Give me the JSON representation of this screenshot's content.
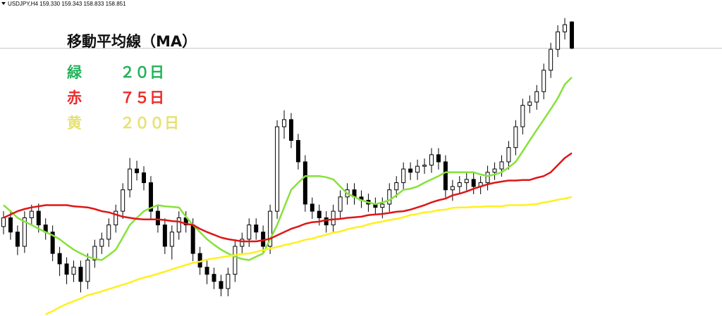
{
  "header": "USDJPY,H4  159.330 159.343 158.833 158.851",
  "chart_data": {
    "type": "candlestick",
    "title": "移動平均線（MA）",
    "ylim": [
      153.97,
      159.73
    ],
    "up_color": "#ffffff",
    "down_color": "#000000",
    "price_line": true,
    "open": [
      155.6,
      155.76,
      155.5,
      155.24,
      155.76,
      155.88,
      155.63,
      155.5,
      155.11,
      154.92,
      154.73,
      154.86,
      154.6,
      154.99,
      155.24,
      155.37,
      155.63,
      155.88,
      156.27,
      156.65,
      156.58,
      156.4,
      155.88,
      155.63,
      155.24,
      155.5,
      155.76,
      155.63,
      155.11,
      154.86,
      154.73,
      154.6,
      154.47,
      154.73,
      155.24,
      155.37,
      155.63,
      155.5,
      155.24,
      155.88,
      157.42,
      157.55,
      157.17,
      156.78,
      156.01,
      155.88,
      155.76,
      155.63,
      155.88,
      156.14,
      156.27,
      156.14,
      156.08,
      156.01,
      155.95,
      156.01,
      156.27,
      156.4,
      156.65,
      156.59,
      156.7,
      156.72,
      156.91,
      156.78,
      156.27,
      156.33,
      156.4,
      156.46,
      156.33,
      156.4,
      156.59,
      156.65,
      156.78,
      157.04,
      157.42,
      157.81,
      157.87,
      158.06,
      158.45,
      158.83,
      159.15,
      159.33
    ],
    "high": [
      155.88,
      155.9,
      155.62,
      155.88,
      156.0,
      156.02,
      155.75,
      155.62,
      155.23,
      155.04,
      154.98,
      154.98,
      155.11,
      155.36,
      155.49,
      155.75,
      156.0,
      156.39,
      156.85,
      156.8,
      156.7,
      156.52,
      156.0,
      155.75,
      155.62,
      155.88,
      155.88,
      155.75,
      155.23,
      154.98,
      154.85,
      154.72,
      154.85,
      155.36,
      155.49,
      155.75,
      155.75,
      155.62,
      156.0,
      157.54,
      157.72,
      157.67,
      157.29,
      156.9,
      156.13,
      156.0,
      155.88,
      156.0,
      156.26,
      156.39,
      156.39,
      156.26,
      156.2,
      156.13,
      156.13,
      156.39,
      156.52,
      156.77,
      156.77,
      156.82,
      156.84,
      157.03,
      157.03,
      156.9,
      156.45,
      156.52,
      156.58,
      156.58,
      156.52,
      156.71,
      156.77,
      156.9,
      157.16,
      157.54,
      157.93,
      157.99,
      158.18,
      158.57,
      158.95,
      159.27,
      159.4,
      159.343
    ],
    "low": [
      155.46,
      155.36,
      155.08,
      155.12,
      155.64,
      155.49,
      155.36,
      154.97,
      154.7,
      154.55,
      154.59,
      154.4,
      154.46,
      154.85,
      155.1,
      155.23,
      155.49,
      155.74,
      156.13,
      156.44,
      156.26,
      155.74,
      155.49,
      155.1,
      155.0,
      155.36,
      155.49,
      154.97,
      154.72,
      154.55,
      154.46,
      154.33,
      154.33,
      154.59,
      155.1,
      155.23,
      155.36,
      155.1,
      155.1,
      155.74,
      157.2,
      157.03,
      156.64,
      155.87,
      155.74,
      155.62,
      155.49,
      155.49,
      155.74,
      156.0,
      156.0,
      155.94,
      155.87,
      155.81,
      155.75,
      155.87,
      156.13,
      156.26,
      156.45,
      156.45,
      156.56,
      156.58,
      156.64,
      156.13,
      156.07,
      156.19,
      156.26,
      156.19,
      156.19,
      156.26,
      156.45,
      156.51,
      156.64,
      156.9,
      157.28,
      157.67,
      157.73,
      157.92,
      158.31,
      158.69,
      159.01,
      158.833
    ],
    "close": [
      155.76,
      155.5,
      155.24,
      155.76,
      155.88,
      155.63,
      155.5,
      155.11,
      154.92,
      154.73,
      154.86,
      154.6,
      154.99,
      155.24,
      155.37,
      155.63,
      155.88,
      156.27,
      156.65,
      156.58,
      156.4,
      155.88,
      155.63,
      155.24,
      155.5,
      155.76,
      155.63,
      155.11,
      154.86,
      154.73,
      154.6,
      154.47,
      154.73,
      155.24,
      155.37,
      155.63,
      155.5,
      155.24,
      155.88,
      157.42,
      157.55,
      157.17,
      156.78,
      156.01,
      155.88,
      155.76,
      155.63,
      155.88,
      156.14,
      156.27,
      156.14,
      156.08,
      156.01,
      155.95,
      156.01,
      156.27,
      156.4,
      156.65,
      156.59,
      156.7,
      156.72,
      156.91,
      156.78,
      156.27,
      156.33,
      156.4,
      156.46,
      156.33,
      156.4,
      156.59,
      156.65,
      156.78,
      157.04,
      157.42,
      157.81,
      157.87,
      158.06,
      158.45,
      158.83,
      159.15,
      159.28,
      158.851
    ],
    "series": [
      {
        "name": "緑",
        "period": "２０日",
        "color": "#86e23a",
        "text_color": "#22b35a",
        "values": [
          155.99,
          155.88,
          155.76,
          155.69,
          155.63,
          155.56,
          155.5,
          155.44,
          155.37,
          155.27,
          155.18,
          155.11,
          155.05,
          155.01,
          154.99,
          155.08,
          155.18,
          155.4,
          155.63,
          155.76,
          155.88,
          155.94,
          155.99,
          155.97,
          155.96,
          155.95,
          155.78,
          155.63,
          155.5,
          155.37,
          155.27,
          155.18,
          155.11,
          155.05,
          155.01,
          154.99,
          155.05,
          155.11,
          155.37,
          155.63,
          155.95,
          156.27,
          156.4,
          156.52,
          156.52,
          156.52,
          156.5,
          156.46,
          156.33,
          156.2,
          156.14,
          156.08,
          156.04,
          156.01,
          156.04,
          156.08,
          156.17,
          156.27,
          156.29,
          156.33,
          156.4,
          156.46,
          156.52,
          156.59,
          156.59,
          156.59,
          156.59,
          156.59,
          156.55,
          156.52,
          156.55,
          156.59,
          156.68,
          156.78,
          156.97,
          157.17,
          157.36,
          157.55,
          157.74,
          157.94,
          158.19,
          158.32
        ]
      },
      {
        "name": "赤",
        "period": "７５日",
        "color": "#e01515",
        "text_color": "#ee2a2a",
        "values": [
          155.76,
          155.82,
          155.88,
          155.92,
          155.95,
          155.97,
          155.99,
          155.99,
          155.99,
          155.99,
          155.97,
          155.96,
          155.95,
          155.92,
          155.88,
          155.86,
          155.82,
          155.78,
          155.76,
          155.74,
          155.73,
          155.73,
          155.73,
          155.72,
          155.7,
          155.69,
          155.65,
          155.63,
          155.56,
          155.5,
          155.45,
          155.4,
          155.37,
          155.35,
          155.33,
          155.33,
          155.33,
          155.35,
          155.38,
          155.44,
          155.5,
          155.56,
          155.6,
          155.65,
          155.68,
          155.69,
          155.72,
          155.73,
          155.74,
          155.76,
          155.77,
          155.78,
          155.81,
          155.82,
          155.83,
          155.85,
          155.87,
          155.88,
          155.91,
          155.95,
          155.99,
          156.04,
          156.08,
          156.11,
          156.17,
          156.2,
          156.24,
          156.29,
          156.33,
          156.37,
          156.4,
          156.42,
          156.44,
          156.44,
          156.45,
          156.45,
          156.49,
          156.52,
          156.59,
          156.72,
          156.85,
          156.94
        ]
      },
      {
        "name": "黄",
        "period": "２００日",
        "color": "#fff01e",
        "text_color": "#e6e272",
        "values": [
          null,
          null,
          null,
          null,
          null,
          null,
          154.0,
          154.06,
          154.13,
          154.19,
          154.24,
          154.29,
          154.35,
          154.38,
          154.42,
          154.46,
          154.5,
          154.54,
          154.58,
          154.63,
          154.67,
          154.7,
          154.74,
          154.78,
          154.82,
          154.86,
          154.9,
          154.94,
          154.96,
          155.0,
          155.02,
          155.04,
          155.06,
          155.08,
          155.1,
          155.11,
          155.14,
          155.17,
          155.2,
          155.23,
          155.26,
          155.29,
          155.32,
          155.36,
          155.38,
          155.42,
          155.45,
          155.49,
          155.51,
          155.55,
          155.58,
          155.6,
          155.64,
          155.67,
          155.69,
          155.72,
          155.74,
          155.77,
          155.81,
          155.83,
          155.86,
          155.87,
          155.9,
          155.91,
          155.94,
          155.95,
          155.95,
          155.96,
          155.96,
          155.97,
          155.97,
          155.97,
          155.99,
          155.99,
          155.99,
          156.0,
          156.01,
          156.04,
          156.06,
          156.09,
          156.11,
          156.14
        ]
      }
    ]
  }
}
